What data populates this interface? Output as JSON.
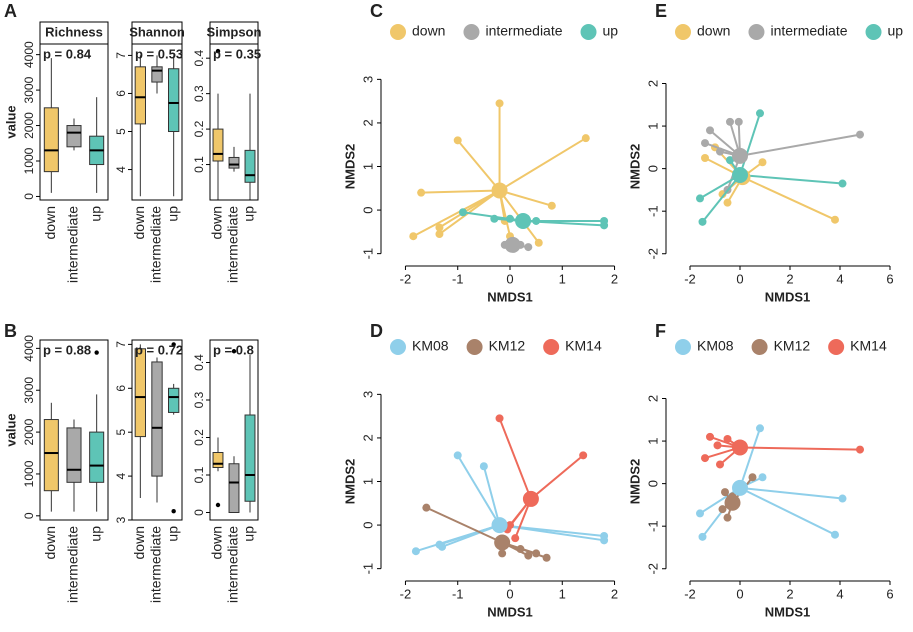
{
  "chart_data": [
    {
      "type": "box",
      "panel": "A",
      "title": "Richness",
      "ylabel": "value",
      "annotation": "p = 0.84",
      "categories": [
        "down",
        "intermediate",
        "up"
      ],
      "colors": [
        "#F0C76A",
        "#A9A9A9",
        "#5EC4B6"
      ],
      "whisker_low": [
        100,
        1300,
        100
      ],
      "q1": [
        700,
        1400,
        900
      ],
      "median": [
        1300,
        1800,
        1300
      ],
      "q3": [
        2500,
        2000,
        1700
      ],
      "whisker_high": [
        3900,
        2200,
        2800
      ],
      "outliers": [
        [],
        [],
        []
      ],
      "ylim": [
        -100,
        4300
      ],
      "yticks": [
        0,
        1000,
        2000,
        3000,
        4000
      ]
    },
    {
      "type": "box",
      "title": "Shannon",
      "annotation": "p = 0.53",
      "categories": [
        "down",
        "intermediate",
        "up"
      ],
      "colors": [
        "#F0C76A",
        "#A9A9A9",
        "#5EC4B6"
      ],
      "whisker_low": [
        3.3,
        6.0,
        3.3
      ],
      "q1": [
        5.2,
        6.3,
        5.0
      ],
      "median": [
        5.9,
        6.6,
        5.75
      ],
      "q3": [
        6.7,
        6.7,
        6.65
      ],
      "whisker_high": [
        7.0,
        7.0,
        7.0
      ],
      "outliers": [
        [],
        [],
        []
      ],
      "ylim": [
        3.2,
        7.3
      ],
      "yticks": [
        4,
        5,
        6,
        7
      ]
    },
    {
      "type": "box",
      "title": "Simpson",
      "annotation": "p = 0.35",
      "categories": [
        "down",
        "intermediate",
        "up"
      ],
      "colors": [
        "#F0C76A",
        "#A9A9A9",
        "#5EC4B6"
      ],
      "whisker_low": [
        0.0,
        0.08,
        0.0
      ],
      "q1": [
        0.11,
        0.09,
        0.05
      ],
      "median": [
        0.13,
        0.1,
        0.07
      ],
      "q3": [
        0.2,
        0.12,
        0.14
      ],
      "whisker_high": [
        0.3,
        0.15,
        0.3
      ],
      "outliers": [
        [
          0.42
        ],
        [],
        []
      ],
      "ylim": [
        0,
        0.44
      ],
      "yticks": [
        0.1,
        0.2,
        0.3,
        0.4
      ]
    },
    {
      "type": "box",
      "panel": "B",
      "ylabel": "value",
      "annotation": "p = 0.88",
      "categories": [
        "down",
        "intermediate",
        "up"
      ],
      "colors": [
        "#F0C76A",
        "#A9A9A9",
        "#5EC4B6"
      ],
      "whisker_low": [
        100,
        100,
        100
      ],
      "q1": [
        600,
        800,
        800
      ],
      "median": [
        1500,
        1100,
        1200
      ],
      "q3": [
        2300,
        2100,
        2000
      ],
      "whisker_high": [
        2700,
        2300,
        2900
      ],
      "outliers": [
        [],
        [],
        [
          3900
        ]
      ],
      "ylim": [
        -100,
        4200
      ],
      "yticks": [
        0,
        1000,
        2000,
        3000,
        4000
      ]
    },
    {
      "type": "box",
      "annotation": "p = 0.72",
      "categories": [
        "down",
        "intermediate",
        "up"
      ],
      "colors": [
        "#F0C76A",
        "#A9A9A9",
        "#5EC4B6"
      ],
      "whisker_low": [
        3.5,
        3.4,
        5.4
      ],
      "q1": [
        4.9,
        4.0,
        5.45
      ],
      "median": [
        5.8,
        5.1,
        5.8
      ],
      "q3": [
        6.9,
        6.6,
        6.0
      ],
      "whisker_high": [
        7.0,
        6.7,
        6.1
      ],
      "outliers": [
        [],
        [],
        [
          3.2,
          7.0
        ]
      ],
      "ylim": [
        3,
        7.1
      ],
      "yticks": [
        3,
        4,
        5,
        6,
        7
      ]
    },
    {
      "type": "box",
      "annotation": "p = 0.8",
      "categories": [
        "down",
        "intermediate",
        "up"
      ],
      "colors": [
        "#F0C76A",
        "#A9A9A9",
        "#5EC4B6"
      ],
      "whisker_low": [
        0.11,
        0.0,
        0.0
      ],
      "q1": [
        0.12,
        0.0,
        0.03
      ],
      "median": [
        0.13,
        0.08,
        0.1
      ],
      "q3": [
        0.16,
        0.13,
        0.26
      ],
      "whisker_high": [
        0.2,
        0.15,
        0.42
      ],
      "outliers": [
        [
          0.02
        ],
        [
          0.43
        ],
        []
      ],
      "ylim": [
        -0.02,
        0.46
      ],
      "yticks": [
        0.0,
        0.1,
        0.2,
        0.3,
        0.4
      ]
    },
    {
      "type": "spider",
      "panel": "C",
      "xlabel": "NMDS1",
      "ylabel": "NMDS2",
      "xlim": [
        -2.2,
        2.2
      ],
      "ylim": [
        -1.1,
        3.1
      ],
      "xticks": [
        -2,
        -1,
        0,
        1,
        2
      ],
      "yticks": [
        -1,
        0,
        1,
        2,
        3
      ],
      "series": [
        {
          "name": "down",
          "color": "#F0C76A",
          "centroid": [
            -0.2,
            0.45
          ],
          "x": [
            -0.2,
            -1.0,
            1.45,
            -1.7,
            -1.85,
            -1.35,
            -1.35,
            0.55,
            0.8,
            0.0,
            -0.1
          ],
          "y": [
            2.45,
            1.6,
            1.65,
            0.4,
            -0.6,
            -0.4,
            -0.55,
            -0.75,
            0.1,
            -0.6,
            -0.25
          ]
        },
        {
          "name": "intermediate",
          "color": "#A9A9A9",
          "centroid": [
            0.05,
            -0.8
          ],
          "x": [
            -0.1,
            0.2,
            0.35,
            0.0
          ],
          "y": [
            -0.8,
            -0.8,
            -0.85,
            -0.75
          ]
        },
        {
          "name": "up",
          "color": "#5EC4B6",
          "centroid": [
            0.25,
            -0.25
          ],
          "x": [
            -0.9,
            1.8,
            1.8,
            0.0,
            0.5,
            0.3,
            -0.3
          ],
          "y": [
            -0.05,
            -0.25,
            -0.35,
            -0.2,
            -0.25,
            -0.3,
            -0.2
          ]
        }
      ]
    },
    {
      "type": "spider",
      "panel": "D",
      "xlabel": "NMDS1",
      "ylabel": "NMDS2",
      "xlim": [
        -2.2,
        2.2
      ],
      "ylim": [
        -1.1,
        3.1
      ],
      "xticks": [
        -2,
        -1,
        0,
        1,
        2
      ],
      "yticks": [
        -1,
        0,
        1,
        2,
        3
      ],
      "series": [
        {
          "name": "KM08",
          "color": "#8FCFEA",
          "centroid": [
            -0.2,
            0.0
          ],
          "x": [
            -1.0,
            -0.5,
            -1.8,
            -1.35,
            -1.3,
            1.8,
            1.8,
            -0.1
          ],
          "y": [
            1.6,
            1.35,
            -0.6,
            -0.45,
            -0.5,
            -0.25,
            -0.35,
            -0.05
          ]
        },
        {
          "name": "KM12",
          "color": "#A9826A",
          "centroid": [
            -0.15,
            -0.4
          ],
          "x": [
            -1.6,
            0.5,
            0.7,
            0.35,
            -0.15,
            0.2
          ],
          "y": [
            0.4,
            -0.65,
            -0.75,
            -0.7,
            -0.65,
            -0.55
          ]
        },
        {
          "name": "KM14",
          "color": "#EE6A5A",
          "centroid": [
            0.4,
            0.6
          ],
          "x": [
            -0.2,
            1.4,
            -0.05,
            0.1,
            0.0
          ],
          "y": [
            2.45,
            1.6,
            -0.1,
            -0.3,
            0.0
          ]
        }
      ]
    },
    {
      "type": "spider",
      "panel": "E",
      "xlabel": "NMDS1",
      "ylabel": "NMDS2",
      "xlim": [
        -2.4,
        6.2
      ],
      "ylim": [
        -2.1,
        2.2
      ],
      "xticks": [
        -2,
        0,
        2,
        4,
        6
      ],
      "yticks": [
        -2,
        -1,
        0,
        1,
        2
      ],
      "series": [
        {
          "name": "down",
          "color": "#F0C76A",
          "centroid": [
            0.1,
            -0.2
          ],
          "x": [
            -1.0,
            0.9,
            3.8,
            -0.5,
            -1.4,
            -0.7
          ],
          "y": [
            0.5,
            0.15,
            -1.2,
            -0.8,
            0.25,
            -0.6
          ]
        },
        {
          "name": "intermediate",
          "color": "#A9A9A9",
          "centroid": [
            0.0,
            0.3
          ],
          "x": [
            -1.2,
            -0.4,
            -0.05,
            4.8,
            -1.4,
            -0.8,
            -0.5
          ],
          "y": [
            0.9,
            1.1,
            1.1,
            0.8,
            0.6,
            0.4,
            -0.5
          ]
        },
        {
          "name": "up",
          "color": "#5EC4B6",
          "centroid": [
            0.0,
            -0.15
          ],
          "x": [
            0.8,
            4.1,
            -1.6,
            -1.5,
            -0.4
          ],
          "y": [
            1.3,
            -0.35,
            -0.7,
            -1.25,
            0.2
          ]
        }
      ]
    },
    {
      "type": "spider",
      "panel": "F",
      "xlabel": "NMDS1",
      "ylabel": "NMDS2",
      "xlim": [
        -2.4,
        6.2
      ],
      "ylim": [
        -2.1,
        2.2
      ],
      "xticks": [
        -2,
        0,
        2,
        4,
        6
      ],
      "yticks": [
        -2,
        -1,
        0,
        1,
        2
      ],
      "series": [
        {
          "name": "KM08",
          "color": "#8FCFEA",
          "centroid": [
            0.0,
            -0.1
          ],
          "x": [
            0.8,
            4.1,
            3.8,
            -1.6,
            -1.5,
            0.9
          ],
          "y": [
            1.3,
            -0.35,
            -1.2,
            -0.7,
            -1.25,
            0.15
          ]
        },
        {
          "name": "KM12",
          "color": "#A9826A",
          "centroid": [
            -0.3,
            -0.45
          ],
          "x": [
            -0.5,
            0.5,
            -0.7,
            -0.3,
            -0.6
          ],
          "y": [
            -0.8,
            0.15,
            -0.6,
            -0.3,
            -0.2
          ]
        },
        {
          "name": "KM14",
          "color": "#EE6A5A",
          "centroid": [
            0.0,
            0.85
          ],
          "x": [
            -1.2,
            -0.5,
            -1.4,
            -0.8,
            4.8,
            -0.9
          ],
          "y": [
            1.1,
            1.05,
            0.6,
            0.45,
            0.8,
            0.9
          ]
        }
      ]
    }
  ]
}
